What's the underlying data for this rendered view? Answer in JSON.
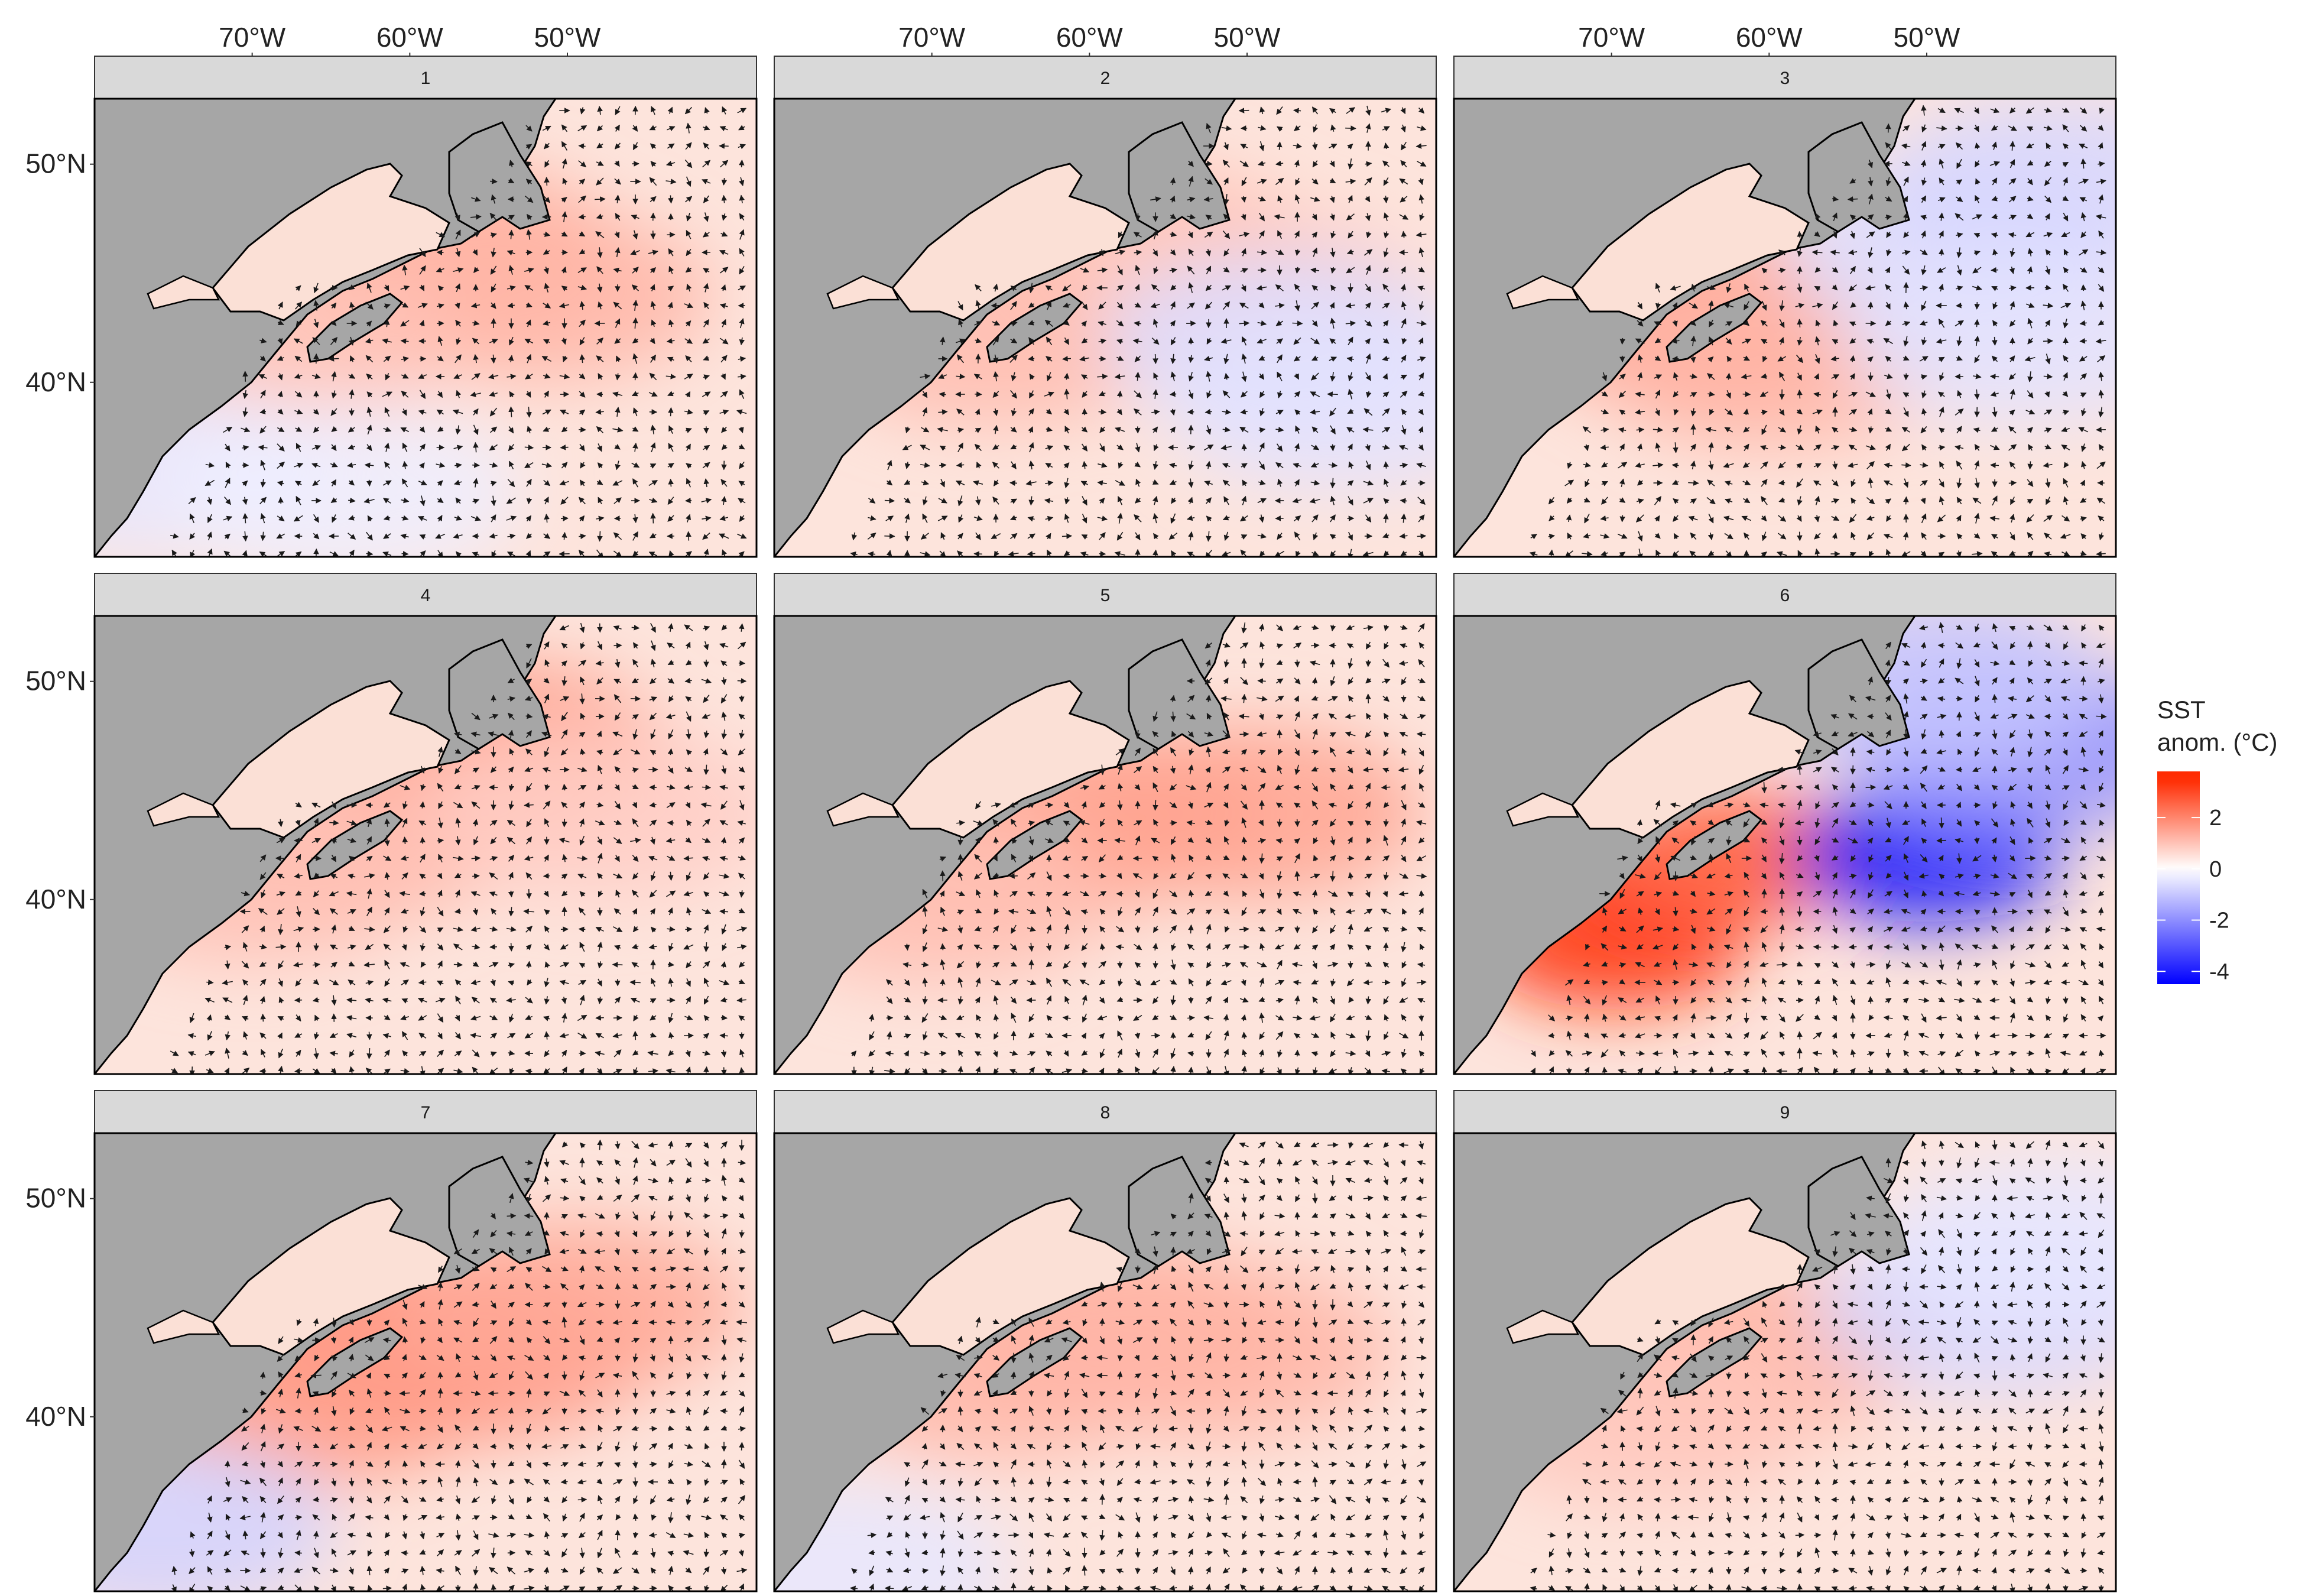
{
  "colors": {
    "land": "#a6a6a6",
    "coast": "#000000",
    "strip": "#d9d9d9",
    "warm": "#ff2a00",
    "neutral": "#ffffff",
    "cold": "#0000ff",
    "arrow": "#1a1a1a"
  },
  "axes": {
    "x_ticks": [
      "70°W",
      "60°W",
      "50°W"
    ],
    "y_ticks": [
      "50°N",
      "40°N"
    ],
    "lon_range": [
      -80,
      -38
    ],
    "lat_range": [
      32,
      53
    ]
  },
  "legend": {
    "title_line1": "SST",
    "title_line2": "anom. (°C)",
    "tick_labels": [
      "2",
      "0",
      "-2",
      "-4"
    ],
    "tick_values": [
      2,
      0,
      -2,
      -4
    ],
    "range": [
      -4.5,
      3.8
    ]
  },
  "chart_data": {
    "type": "heatmap",
    "variable": "SST anomaly (°C) with surface vector field",
    "panels": [
      {
        "label": "1",
        "features": [
          {
            "lon": -58,
            "lat": 46,
            "v": 1.4
          },
          {
            "lon": -52,
            "lat": 44,
            "v": 1.2
          },
          {
            "lon": -68,
            "lat": 42,
            "v": 1.0
          },
          {
            "lon": -76,
            "lat": 36,
            "v": -0.4
          },
          {
            "lon": -64,
            "lat": 35,
            "v": -0.3
          }
        ]
      },
      {
        "label": "2",
        "features": [
          {
            "lon": -57,
            "lat": 46,
            "v": 1.0
          },
          {
            "lon": -66,
            "lat": 42,
            "v": 1.1
          },
          {
            "lon": -50,
            "lat": 44,
            "v": 0.9
          },
          {
            "lon": -48,
            "lat": 42,
            "v": -0.6
          },
          {
            "lon": -44,
            "lat": 39,
            "v": -0.5
          }
        ]
      },
      {
        "label": "3",
        "features": [
          {
            "lon": -65,
            "lat": 43,
            "v": 1.6
          },
          {
            "lon": -60,
            "lat": 41,
            "v": 1.2
          },
          {
            "lon": -48,
            "lat": 46,
            "v": -0.6
          },
          {
            "lon": -42,
            "lat": 49,
            "v": -0.7
          },
          {
            "lon": -44,
            "lat": 42,
            "v": -0.5
          }
        ]
      },
      {
        "label": "4",
        "features": [
          {
            "lon": -55,
            "lat": 47,
            "v": 1.6
          },
          {
            "lon": -64,
            "lat": 43,
            "v": 1.2
          },
          {
            "lon": -70,
            "lat": 41,
            "v": 1.0
          },
          {
            "lon": -48,
            "lat": 44,
            "v": 0.8
          }
        ]
      },
      {
        "label": "5",
        "features": [
          {
            "lon": -60,
            "lat": 44,
            "v": 1.5
          },
          {
            "lon": -66,
            "lat": 42,
            "v": 1.4
          },
          {
            "lon": -50,
            "lat": 44,
            "v": 1.5
          },
          {
            "lon": -70,
            "lat": 40,
            "v": 1.0
          }
        ]
      },
      {
        "label": "6",
        "features": [
          {
            "lon": -66,
            "lat": 41,
            "v": 2.9
          },
          {
            "lon": -70,
            "lat": 38,
            "v": 3.3
          },
          {
            "lon": -62,
            "lat": 42,
            "v": 2.4
          },
          {
            "lon": -50,
            "lat": 42,
            "v": -4.2
          },
          {
            "lon": -44,
            "lat": 47,
            "v": -1.9
          },
          {
            "lon": -50,
            "lat": 50,
            "v": -1.0
          }
        ]
      },
      {
        "label": "7",
        "features": [
          {
            "lon": -62,
            "lat": 44,
            "v": 1.7
          },
          {
            "lon": -56,
            "lat": 43,
            "v": 1.8
          },
          {
            "lon": -66,
            "lat": 41,
            "v": 1.6
          },
          {
            "lon": -50,
            "lat": 45,
            "v": 1.4
          },
          {
            "lon": -76,
            "lat": 35,
            "v": -0.8
          }
        ]
      },
      {
        "label": "8",
        "features": [
          {
            "lon": -58,
            "lat": 44,
            "v": 1.4
          },
          {
            "lon": -66,
            "lat": 42,
            "v": 1.2
          },
          {
            "lon": -52,
            "lat": 43,
            "v": 1.2
          },
          {
            "lon": -76,
            "lat": 33,
            "v": -0.4
          }
        ]
      },
      {
        "label": "9",
        "features": [
          {
            "lon": -62,
            "lat": 43,
            "v": 1.3
          },
          {
            "lon": -68,
            "lat": 40,
            "v": 0.9
          },
          {
            "lon": -46,
            "lat": 45,
            "v": -0.7
          },
          {
            "lon": -42,
            "lat": 48,
            "v": -0.4
          }
        ]
      }
    ]
  }
}
